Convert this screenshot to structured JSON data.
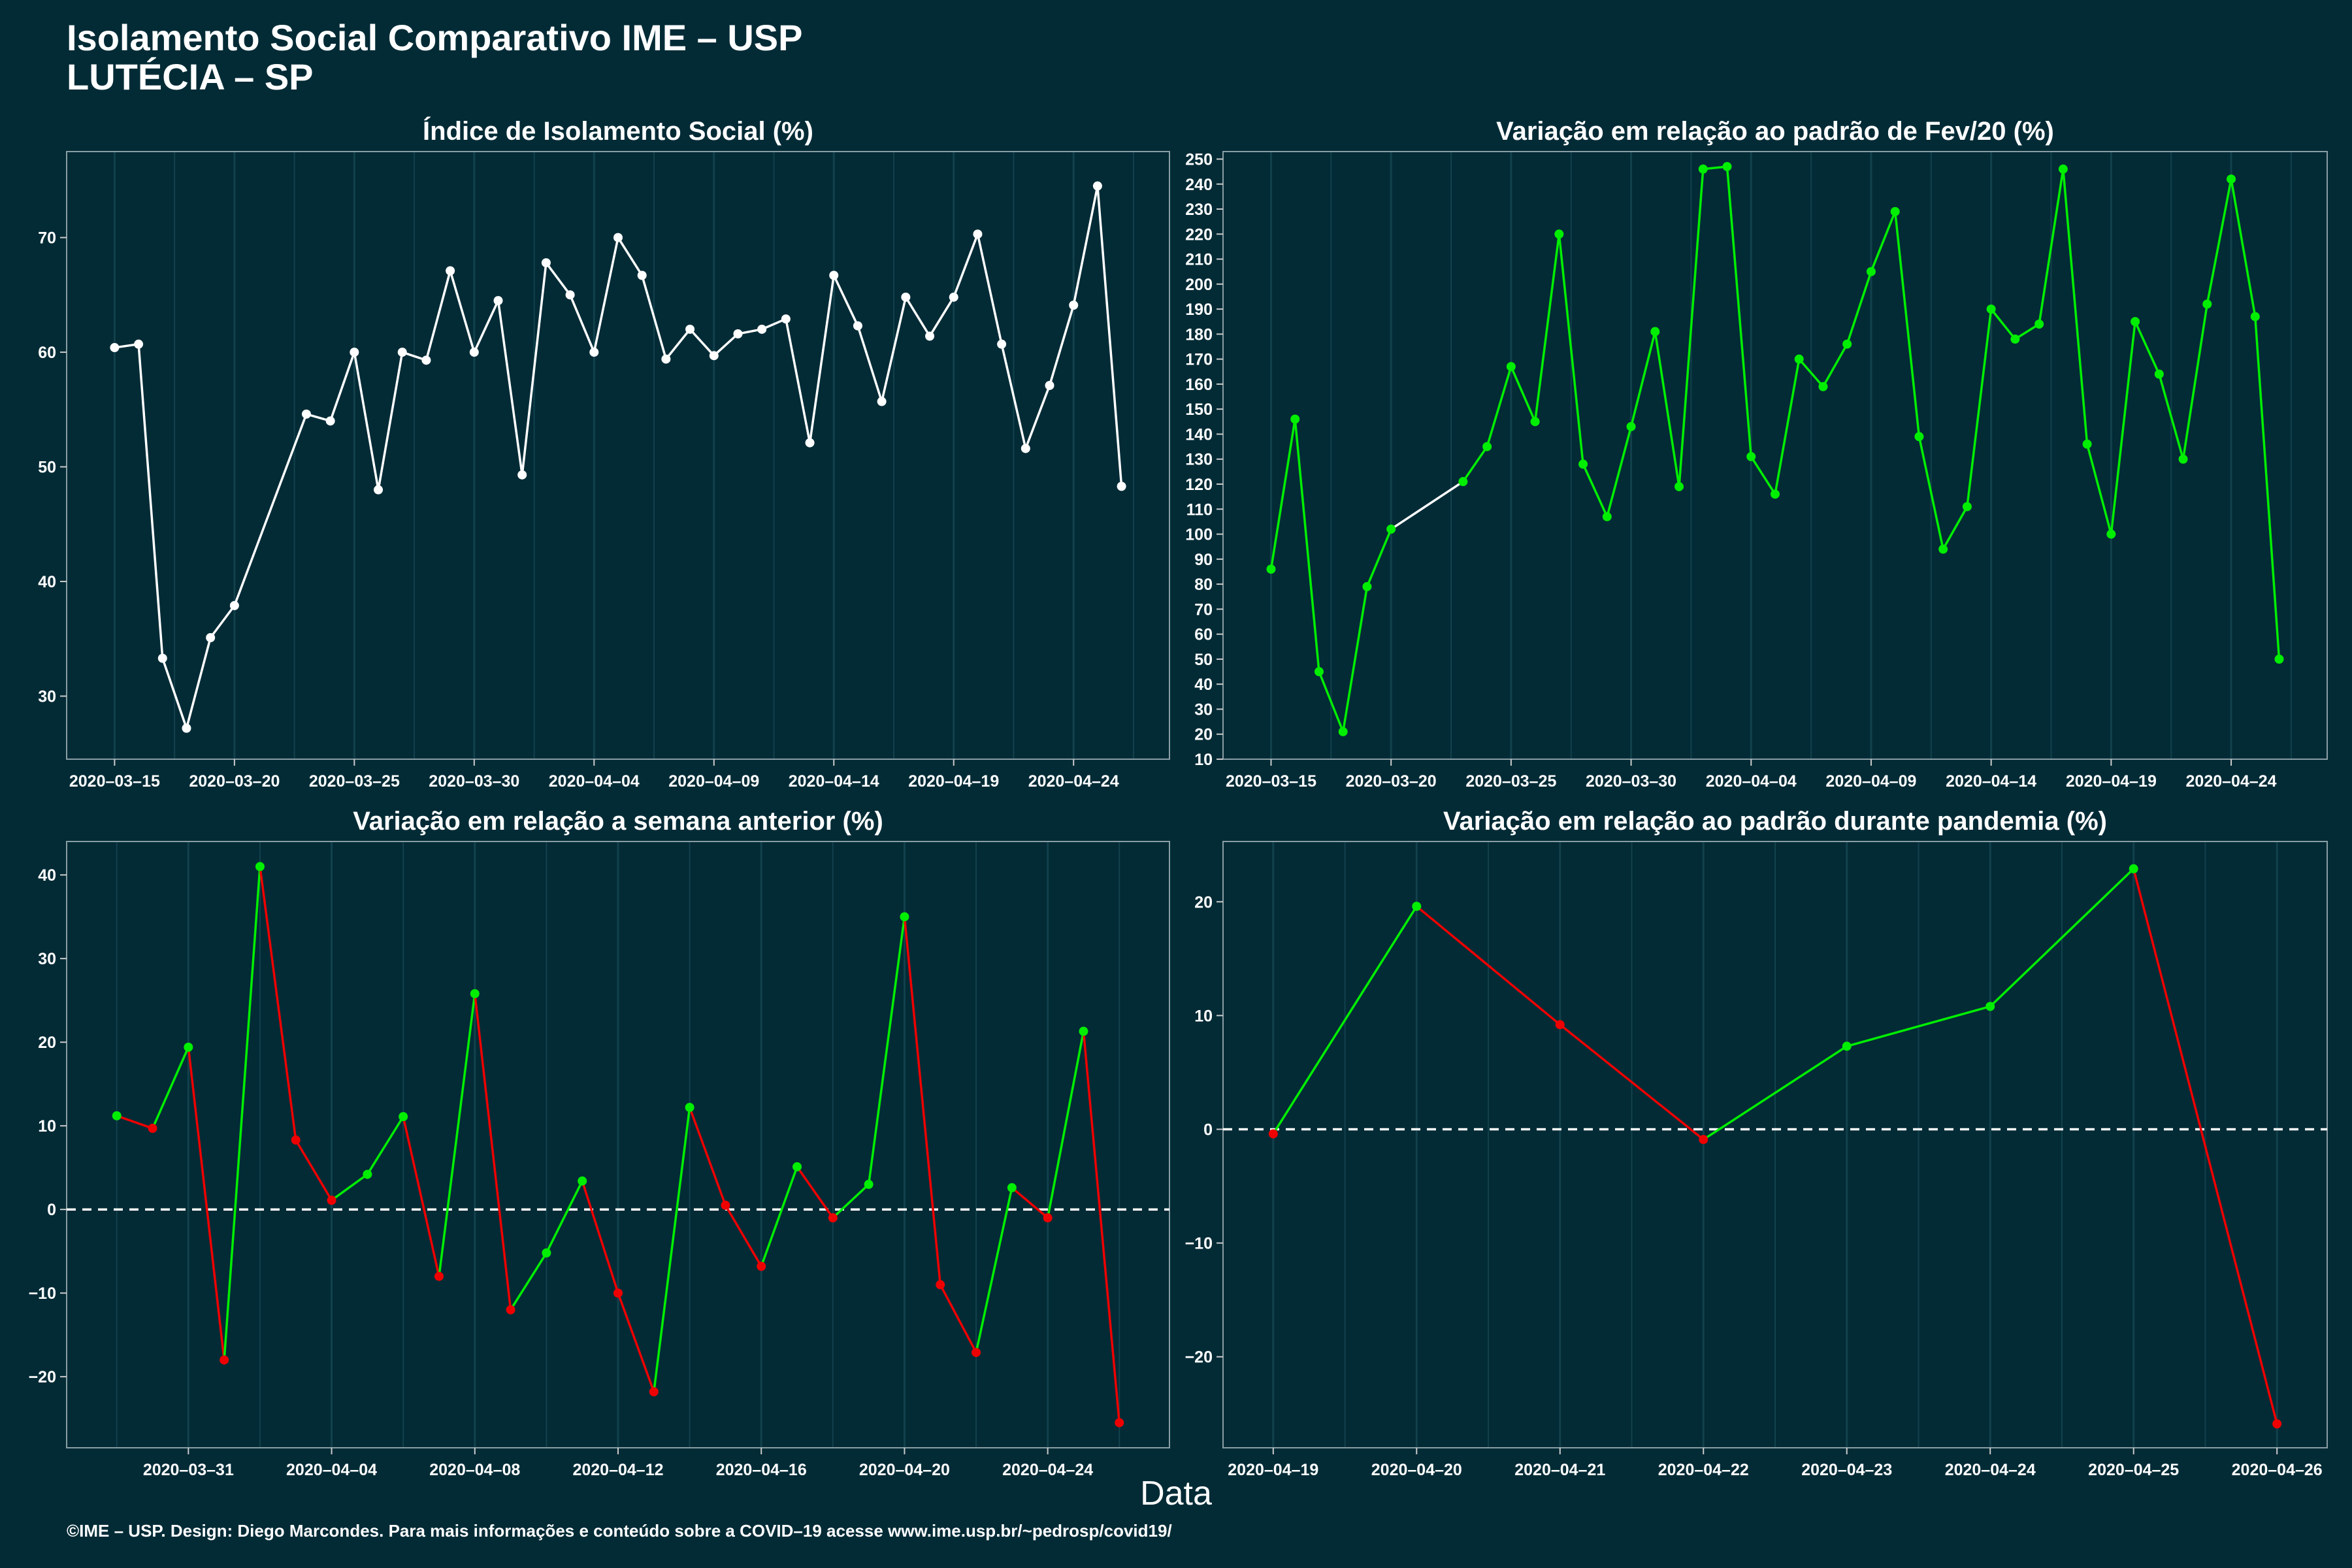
{
  "header": {
    "title_line1": "Isolamento Social Comparativo IME – USP",
    "title_line2": "LUTÉCIA – SP"
  },
  "x_axis_label": "Data",
  "footer": "©IME – USP. Design: Diego Marcondes. Para mais informações e conteúdo sobre a COVID–19 acesse www.ime.usp.br/~pedrosp/covid19/",
  "colors": {
    "background": "#022b36",
    "grid": "#12414c",
    "white": "#ffffff",
    "green": "#00ee00",
    "red": "#ee0000"
  },
  "chart_data": [
    {
      "type": "line",
      "title": "Índice de Isolamento Social (%)",
      "x_start": "2020-03-15",
      "x_ticks": [
        "2020–03–15",
        "2020–03–20",
        "2020–03–25",
        "2020–03–30",
        "2020–04–04",
        "2020–04–09",
        "2020–04–14",
        "2020–04–19",
        "2020–04–24"
      ],
      "y_ticks": [
        30,
        40,
        50,
        60,
        70
      ],
      "ylim": [
        24.5,
        77.5
      ],
      "xlim": [
        -2,
        44
      ],
      "grid": true,
      "line_color": "white",
      "series": [
        {
          "points": [
            [
              0,
              60.4
            ],
            [
              1,
              60.7
            ],
            [
              2,
              33.3
            ],
            [
              3,
              27.2
            ],
            [
              4,
              35.1
            ],
            [
              5,
              37.9
            ],
            [
              8,
              54.6
            ],
            [
              9,
              54.0
            ],
            [
              10,
              60.0
            ],
            [
              11,
              48.0
            ],
            [
              12,
              60.0
            ],
            [
              13,
              59.3
            ],
            [
              14,
              67.1
            ],
            [
              15,
              60.0
            ],
            [
              16,
              64.5
            ],
            [
              17,
              49.3
            ],
            [
              18,
              67.8
            ],
            [
              19,
              65.0
            ],
            [
              20,
              60.0
            ],
            [
              21,
              70.0
            ],
            [
              22,
              66.7
            ],
            [
              23,
              59.4
            ],
            [
              24,
              62.0
            ],
            [
              25,
              59.7
            ],
            [
              26,
              61.6
            ],
            [
              27,
              62.0
            ],
            [
              28,
              62.9
            ],
            [
              29,
              52.1
            ],
            [
              30,
              66.7
            ],
            [
              31,
              62.3
            ],
            [
              32,
              55.7
            ],
            [
              33,
              64.8
            ],
            [
              34,
              61.4
            ],
            [
              35,
              64.8
            ],
            [
              36,
              70.3
            ],
            [
              37,
              60.7
            ],
            [
              38,
              51.6
            ],
            [
              39,
              57.1
            ],
            [
              40,
              64.1
            ],
            [
              41,
              74.5
            ],
            [
              42,
              48.3
            ]
          ]
        }
      ]
    },
    {
      "type": "line",
      "title": "Variação em relação ao padrão de Fev/20 (%)",
      "x_start": "2020-03-15",
      "x_ticks": [
        "2020–03–15",
        "2020–03–20",
        "2020–03–25",
        "2020–03–30",
        "2020–04–04",
        "2020–04–09",
        "2020–04–14",
        "2020–04–19",
        "2020–04–24"
      ],
      "y_ticks": [
        10,
        20,
        30,
        40,
        50,
        60,
        70,
        80,
        90,
        100,
        110,
        120,
        130,
        140,
        150,
        160,
        170,
        180,
        190,
        200,
        210,
        220,
        230,
        240,
        250
      ],
      "ylim": [
        10,
        253
      ],
      "xlim": [
        -2,
        44
      ],
      "grid": true,
      "series": [
        {
          "points": [
            [
              0,
              86
            ],
            [
              1,
              146
            ],
            [
              2,
              45
            ],
            [
              3,
              21
            ],
            [
              4,
              79
            ],
            [
              5,
              102
            ],
            [
              8,
              121
            ],
            [
              9,
              135
            ],
            [
              10,
              167
            ],
            [
              11,
              145
            ],
            [
              12,
              220
            ],
            [
              13,
              128
            ],
            [
              14,
              107
            ],
            [
              15,
              143
            ],
            [
              16,
              181
            ],
            [
              17,
              119
            ],
            [
              18,
              246
            ],
            [
              19,
              247
            ],
            [
              20,
              131
            ],
            [
              21,
              116
            ],
            [
              22,
              170
            ],
            [
              23,
              159
            ],
            [
              24,
              176
            ],
            [
              25,
              205
            ],
            [
              26,
              229
            ],
            [
              27,
              139
            ],
            [
              28,
              94
            ],
            [
              29,
              111
            ],
            [
              30,
              190
            ],
            [
              31,
              178
            ],
            [
              32,
              184
            ],
            [
              33,
              246
            ],
            [
              34,
              136
            ],
            [
              35,
              100
            ],
            [
              36,
              185
            ],
            [
              37,
              164
            ],
            [
              38,
              130
            ],
            [
              39,
              192
            ],
            [
              40,
              242
            ],
            [
              41,
              187
            ],
            [
              42,
              50
            ]
          ]
        }
      ]
    },
    {
      "type": "line",
      "title": "Variação em relação a semana anterior (%)",
      "x_start": "2020-03-29",
      "x_ticks": [
        "2020–03–31",
        "2020–04–04",
        "2020–04–08",
        "2020–04–12",
        "2020–04–16",
        "2020–04–20",
        "2020–04–24"
      ],
      "y_ticks": [
        -20,
        -10,
        0,
        10,
        20,
        30,
        40
      ],
      "ylim": [
        -28.5,
        44
      ],
      "xlim": [
        -1.4,
        29.4
      ],
      "reference_line": 0,
      "grid": true,
      "series": [
        {
          "points": [
            [
              0,
              11.2
            ],
            [
              1,
              9.7
            ],
            [
              2,
              19.4
            ],
            [
              3,
              -18.0
            ],
            [
              4,
              41.0
            ],
            [
              5,
              8.3
            ],
            [
              6,
              1.1
            ],
            [
              7,
              4.2
            ],
            [
              8,
              11.1
            ],
            [
              9,
              -8.0
            ],
            [
              10,
              25.8
            ],
            [
              11,
              -12.0
            ],
            [
              12,
              -5.2
            ],
            [
              13,
              3.4
            ],
            [
              14,
              -10.0
            ],
            [
              15,
              -21.8
            ],
            [
              16,
              12.2
            ],
            [
              17,
              0.5
            ],
            [
              18,
              -6.8
            ],
            [
              19,
              5.1
            ],
            [
              20,
              -1.0
            ],
            [
              21,
              3.0
            ],
            [
              22,
              35.0
            ],
            [
              23,
              -9.0
            ],
            [
              24,
              -17.1
            ],
            [
              25,
              2.6
            ],
            [
              26,
              -1.0
            ],
            [
              27,
              21.3
            ],
            [
              28,
              -25.5
            ]
          ]
        }
      ]
    },
    {
      "type": "line",
      "title": "Variação em relação ao padrão durante pandemia (%)",
      "x_ticks": [
        "2020–04–19",
        "2020–04–20",
        "2020–04–21",
        "2020–04–22",
        "2020–04–23",
        "2020–04–24",
        "2020–04–25",
        "2020–04–26"
      ],
      "y_ticks": [
        -20,
        -10,
        0,
        10,
        20
      ],
      "ylim": [
        -28,
        25.3
      ],
      "xlim": [
        -0.35,
        7.35
      ],
      "reference_line": 0,
      "grid": true,
      "series": [
        {
          "points": [
            [
              0,
              -0.4
            ],
            [
              1,
              19.6
            ],
            [
              2,
              9.2
            ],
            [
              3,
              -0.9
            ],
            [
              4,
              7.3
            ],
            [
              5,
              10.8
            ],
            [
              6,
              22.9
            ],
            [
              7,
              -25.9
            ]
          ]
        }
      ]
    }
  ]
}
